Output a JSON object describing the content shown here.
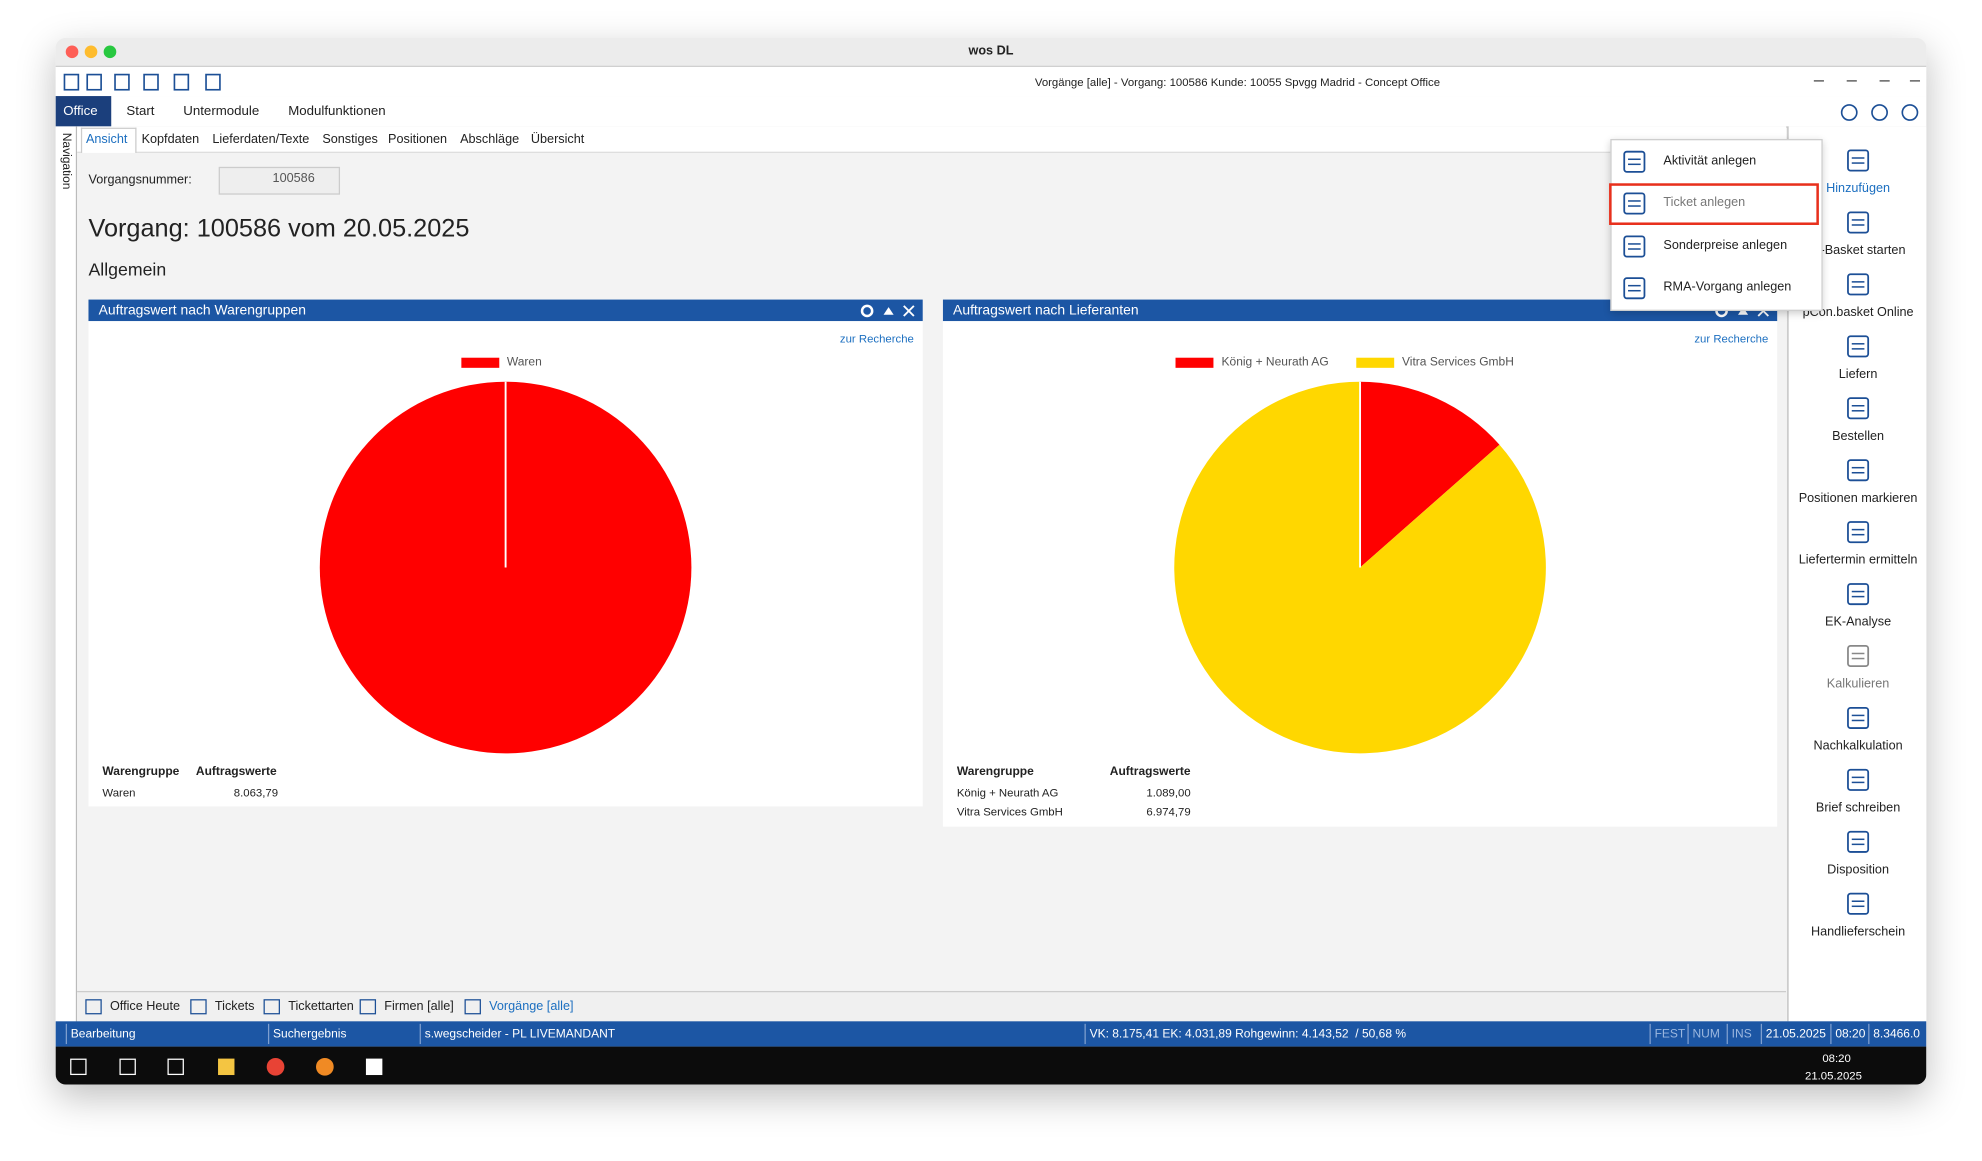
{
  "window": {
    "title": "wos DL",
    "app_title": "Vorgänge [alle] - Vorgang: 100586 Kunde: 10055 Spvgg Madrid - Concept Office"
  },
  "ribbon_tabs": [
    "Office",
    "Start",
    "Untermodule",
    "Modulfunktionen"
  ],
  "side_nav": "Navigation",
  "sub_tabs": [
    "Ansicht",
    "Kopfdaten",
    "Lieferdaten/Texte",
    "Sonstiges",
    "Positionen",
    "Abschläge",
    "Übersicht"
  ],
  "form": {
    "label": "Vorgangsnummer:",
    "value": "100586"
  },
  "heading": "Vorgang: 100586 vom 20.05.2025",
  "section": "Allgemein",
  "panels": [
    {
      "title": "Auftragswert nach Warengruppen",
      "link": "zur Recherche",
      "columns": [
        "Warengruppe",
        "Auftragswerte"
      ],
      "chart": {
        "type": "pie",
        "categories": [
          "Waren"
        ],
        "colors": [
          "#ff0000"
        ],
        "values": [
          8063.79
        ],
        "value_labels": [
          "8.063,79"
        ]
      }
    },
    {
      "title": "Auftragswert nach Lieferanten",
      "link": "zur Recherche",
      "columns": [
        "Warengruppe",
        "Auftragswerte"
      ],
      "chart": {
        "type": "pie",
        "categories": [
          "König + Neurath AG",
          "Vitra Services GmbH"
        ],
        "colors": [
          "#ff0000",
          "#ffd700"
        ],
        "values": [
          1089.0,
          6974.79
        ],
        "value_labels": [
          "1.089,00",
          "6.974,79"
        ]
      }
    }
  ],
  "dropdown": [
    "Aktivität anlegen",
    "Ticket anlegen",
    "Sonderpreise anlegen",
    "RMA-Vorgang anlegen"
  ],
  "right_toolbar": [
    "Hinzufügen",
    "nl-Basket starten",
    "pCon.basket Online",
    "Liefern",
    "Bestellen",
    "Positionen markieren",
    "Liefertermin ermitteln",
    "EK-Analyse",
    "Kalkulieren",
    "Nachkalkulation",
    "Brief schreiben",
    "Disposition",
    "Handlieferschein"
  ],
  "bottom_tabs": [
    "Office Heute",
    "Tickets",
    "Tickettarten",
    "Firmen [alle]",
    "Vorgänge [alle]"
  ],
  "status_bar": [
    "Bearbeitung",
    "Suchergebnis",
    "s.wegscheider - PL LIVEMANDANT",
    "VK: 8.175,41 EK: 4.031,89 Rohgewinn: 4.143,52  / 50,68 %",
    "FEST",
    "NUM",
    "INS",
    "21.05.2025",
    "08:20",
    "8.3466.0"
  ],
  "taskbar": {
    "time": "08:20",
    "date": "21.05.2025"
  }
}
